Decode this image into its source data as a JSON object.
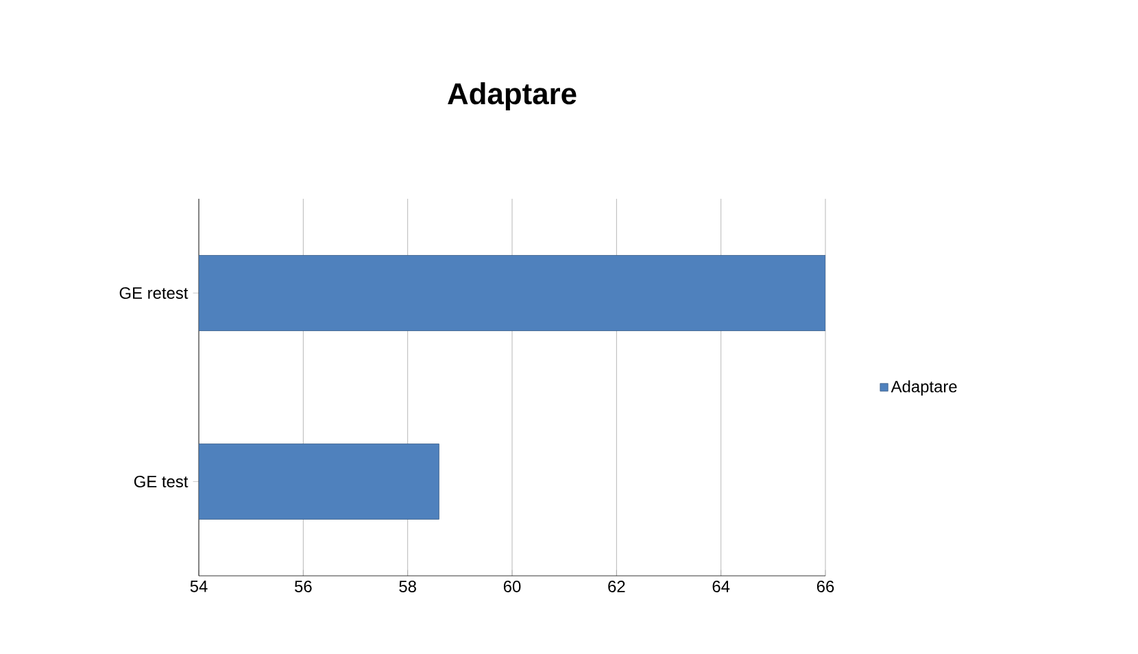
{
  "chart_data": {
    "type": "bar",
    "title": "Adaptare",
    "orientation": "horizontal",
    "categories": [
      "GE retest",
      "GE test"
    ],
    "series": [
      {
        "name": "Adaptare",
        "color": "#4f81bd",
        "values": [
          66,
          58.6
        ]
      }
    ],
    "xlim": [
      54,
      66
    ],
    "xticks": [
      54,
      56,
      58,
      60,
      62,
      64,
      66
    ],
    "grid": "x",
    "legend": "right"
  }
}
